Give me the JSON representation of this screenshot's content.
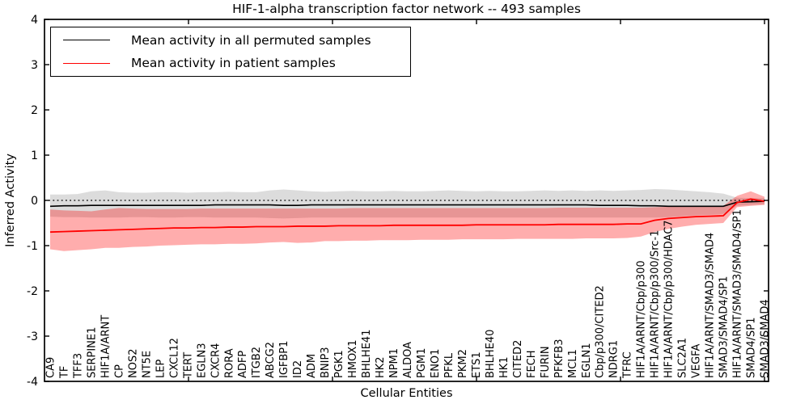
{
  "figure": {
    "title": "HIF-1-alpha transcription factor network -- 493 samples"
  },
  "legend": {
    "entries": [
      {
        "label": "Mean activity in all permuted samples",
        "color": "#000000"
      },
      {
        "label": "Mean activity in patient samples",
        "color": "#ff0000"
      }
    ]
  },
  "chart_data": {
    "type": "line",
    "title": "HIF-1-alpha transcription factor network -- 493 samples",
    "xlabel": "Cellular Entities",
    "ylabel": "Inferred Activity",
    "ylim": [
      -4,
      4
    ],
    "yticks": [
      4,
      3,
      2,
      1,
      0,
      -1,
      -2,
      -3,
      -4
    ],
    "zero_reference_line": 0,
    "grid": false,
    "legend_position": "upper left",
    "categories": [
      "CA9",
      "TF",
      "TFF3",
      "SERPINE1",
      "HIF1A/ARNT",
      "CP",
      "NOS2",
      "NT5E",
      "LEP",
      "CXCL12",
      "TERT",
      "EGLN3",
      "CXCR4",
      "RORA",
      "ADFP",
      "ITGB2",
      "ABCG2",
      "IGFBP1",
      "ID2",
      "ADM",
      "BNIP3",
      "PGK1",
      "HMOX1",
      "BHLHE41",
      "HK2",
      "NPM1",
      "ALDOA",
      "PGM1",
      "ENO1",
      "PFKL",
      "PKM2",
      "ETS1",
      "BHLHE40",
      "HK1",
      "CITED2",
      "FECH",
      "FURIN",
      "PFKFB3",
      "MCL1",
      "EGLN1",
      "Cbp/p300/CITED2",
      "NDRG1",
      "TFRC",
      "HIF1A/ARNT/Cbp/p300",
      "HIF1A/ARNT/Cbp/p300/Src-1",
      "HIF1A/ARNT/Cbp/p300/HDAC7",
      "SLC2A1",
      "VEGFA",
      "HIF1A/ARNT/SMAD3/SMAD4",
      "SMAD3/SMAD4/SP1",
      "HIF1A/ARNT/SMAD3/SMAD4/SP1",
      "SMAD4/SP1",
      "SMAD3/SMAD4"
    ],
    "series": [
      {
        "name": "Mean activity in all permuted samples",
        "color": "#000000",
        "band_color": "rgba(125,125,125,0.27)",
        "values": [
          -0.13,
          -0.12,
          -0.12,
          -0.11,
          -0.11,
          -0.11,
          -0.11,
          -0.11,
          -0.11,
          -0.11,
          -0.11,
          -0.11,
          -0.1,
          -0.1,
          -0.1,
          -0.1,
          -0.1,
          -0.11,
          -0.11,
          -0.1,
          -0.1,
          -0.1,
          -0.1,
          -0.1,
          -0.1,
          -0.1,
          -0.1,
          -0.1,
          -0.1,
          -0.1,
          -0.1,
          -0.1,
          -0.1,
          -0.1,
          -0.1,
          -0.1,
          -0.1,
          -0.1,
          -0.1,
          -0.1,
          -0.11,
          -0.11,
          -0.11,
          -0.12,
          -0.12,
          -0.13,
          -0.13,
          -0.13,
          -0.13,
          -0.13,
          -0.04,
          -0.03,
          -0.02
        ],
        "band_upper": [
          0.13,
          0.13,
          0.14,
          0.2,
          0.22,
          0.18,
          0.17,
          0.17,
          0.18,
          0.18,
          0.17,
          0.18,
          0.18,
          0.19,
          0.18,
          0.18,
          0.22,
          0.24,
          0.22,
          0.2,
          0.19,
          0.2,
          0.21,
          0.2,
          0.2,
          0.21,
          0.2,
          0.2,
          0.21,
          0.22,
          0.21,
          0.2,
          0.21,
          0.2,
          0.2,
          0.21,
          0.22,
          0.21,
          0.22,
          0.21,
          0.22,
          0.21,
          0.22,
          0.23,
          0.25,
          0.24,
          0.22,
          0.2,
          0.18,
          0.15,
          0.06,
          0.05,
          0.05
        ],
        "band_lower": [
          -0.36,
          -0.37,
          -0.37,
          -0.38,
          -0.38,
          -0.38,
          -0.37,
          -0.37,
          -0.38,
          -0.38,
          -0.37,
          -0.37,
          -0.38,
          -0.38,
          -0.38,
          -0.38,
          -0.39,
          -0.4,
          -0.39,
          -0.38,
          -0.38,
          -0.38,
          -0.38,
          -0.38,
          -0.38,
          -0.38,
          -0.38,
          -0.38,
          -0.38,
          -0.38,
          -0.38,
          -0.38,
          -0.38,
          -0.38,
          -0.38,
          -0.38,
          -0.38,
          -0.38,
          -0.38,
          -0.38,
          -0.38,
          -0.38,
          -0.38,
          -0.38,
          -0.38,
          -0.37,
          -0.35,
          -0.33,
          -0.32,
          -0.3,
          -0.12,
          -0.1,
          -0.08
        ]
      },
      {
        "name": "Mean activity in patient samples",
        "color": "#ff0000",
        "band_color": "rgba(255,0,0,0.32)",
        "values": [
          -0.7,
          -0.69,
          -0.68,
          -0.67,
          -0.66,
          -0.65,
          -0.64,
          -0.63,
          -0.62,
          -0.61,
          -0.61,
          -0.6,
          -0.6,
          -0.59,
          -0.59,
          -0.58,
          -0.58,
          -0.58,
          -0.57,
          -0.57,
          -0.57,
          -0.56,
          -0.56,
          -0.56,
          -0.56,
          -0.55,
          -0.55,
          -0.55,
          -0.55,
          -0.55,
          -0.55,
          -0.54,
          -0.54,
          -0.54,
          -0.54,
          -0.54,
          -0.54,
          -0.53,
          -0.53,
          -0.53,
          -0.53,
          -0.53,
          -0.52,
          -0.52,
          -0.44,
          -0.4,
          -0.38,
          -0.36,
          -0.35,
          -0.34,
          -0.05,
          0.03,
          -0.02
        ],
        "band_upper": [
          -0.2,
          -0.22,
          -0.23,
          -0.24,
          -0.2,
          -0.17,
          -0.18,
          -0.19,
          -0.19,
          -0.19,
          -0.19,
          -0.18,
          -0.18,
          -0.18,
          -0.18,
          -0.18,
          -0.18,
          -0.18,
          -0.18,
          -0.18,
          -0.18,
          -0.18,
          -0.17,
          -0.17,
          -0.17,
          -0.17,
          -0.17,
          -0.17,
          -0.17,
          -0.17,
          -0.17,
          -0.17,
          -0.17,
          -0.17,
          -0.17,
          -0.17,
          -0.17,
          -0.16,
          -0.16,
          -0.16,
          -0.16,
          -0.16,
          -0.16,
          -0.16,
          -0.15,
          -0.14,
          -0.13,
          -0.13,
          -0.12,
          -0.12,
          0.1,
          0.2,
          0.08
        ],
        "band_lower": [
          -1.08,
          -1.12,
          -1.1,
          -1.08,
          -1.05,
          -1.05,
          -1.03,
          -1.02,
          -1.0,
          -0.99,
          -0.98,
          -0.97,
          -0.97,
          -0.96,
          -0.96,
          -0.95,
          -0.93,
          -0.92,
          -0.94,
          -0.93,
          -0.9,
          -0.9,
          -0.89,
          -0.89,
          -0.88,
          -0.88,
          -0.88,
          -0.87,
          -0.87,
          -0.87,
          -0.86,
          -0.86,
          -0.86,
          -0.86,
          -0.85,
          -0.85,
          -0.85,
          -0.85,
          -0.85,
          -0.84,
          -0.84,
          -0.84,
          -0.83,
          -0.8,
          -0.7,
          -0.63,
          -0.58,
          -0.54,
          -0.52,
          -0.5,
          -0.15,
          -0.12,
          -0.1
        ]
      }
    ]
  }
}
